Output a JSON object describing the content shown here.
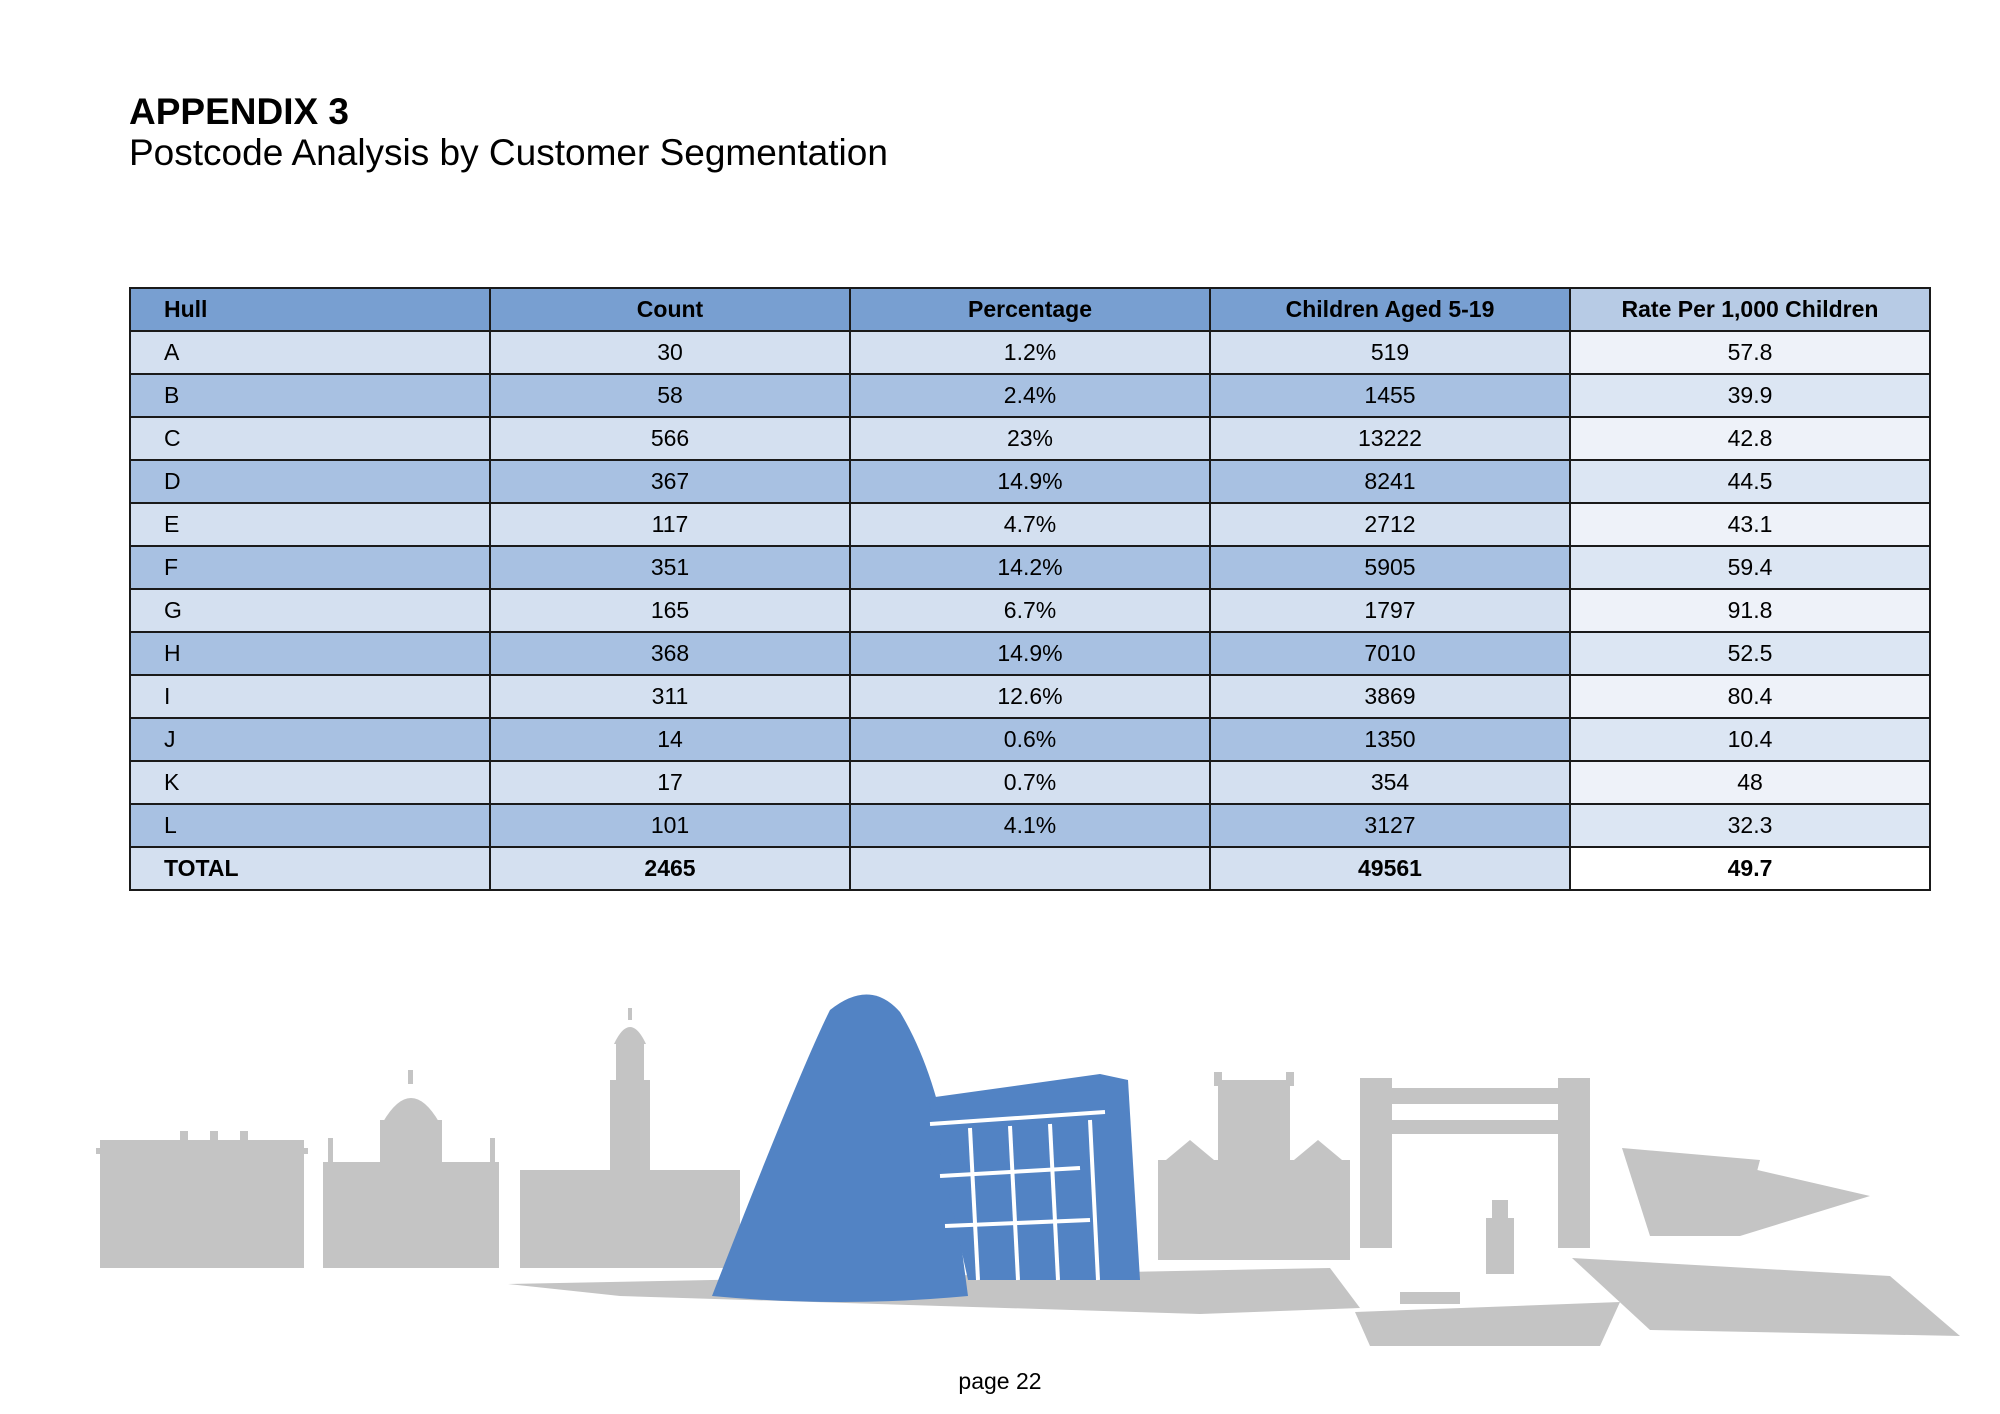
{
  "header": {
    "title": "APPENDIX 3",
    "subtitle": "Postcode Analysis by Customer Segmentation"
  },
  "table": {
    "columns": [
      "Hull",
      "Count",
      "Percentage",
      "Children Aged 5-19",
      "Rate Per 1,000 Children"
    ],
    "rows": [
      [
        "A",
        "30",
        "1.2%",
        "519",
        "57.8"
      ],
      [
        "B",
        "58",
        "2.4%",
        "1455",
        "39.9"
      ],
      [
        "C",
        "566",
        "23%",
        "13222",
        "42.8"
      ],
      [
        "D",
        "367",
        "14.9%",
        "8241",
        "44.5"
      ],
      [
        "E",
        "117",
        "4.7%",
        "2712",
        "43.1"
      ],
      [
        "F",
        "351",
        "14.2%",
        "5905",
        "59.4"
      ],
      [
        "G",
        "165",
        "6.7%",
        "1797",
        "91.8"
      ],
      [
        "H",
        "368",
        "14.9%",
        "7010",
        "52.5"
      ],
      [
        "I",
        "311",
        "12.6%",
        "3869",
        "80.4"
      ],
      [
        "J",
        "14",
        "0.6%",
        "1350",
        "10.4"
      ],
      [
        "K",
        "17",
        "0.7%",
        "354",
        "48"
      ],
      [
        "L",
        "101",
        "4.1%",
        "3127",
        "32.3"
      ]
    ],
    "total": [
      "TOTAL",
      "2465",
      "",
      "49561",
      "49.7"
    ]
  },
  "footer": {
    "page_label": "page 22"
  },
  "colors": {
    "header_blue": "#789fd1",
    "skyline_grey": "#c4c4c4",
    "skyline_blue": "#5283c4"
  }
}
